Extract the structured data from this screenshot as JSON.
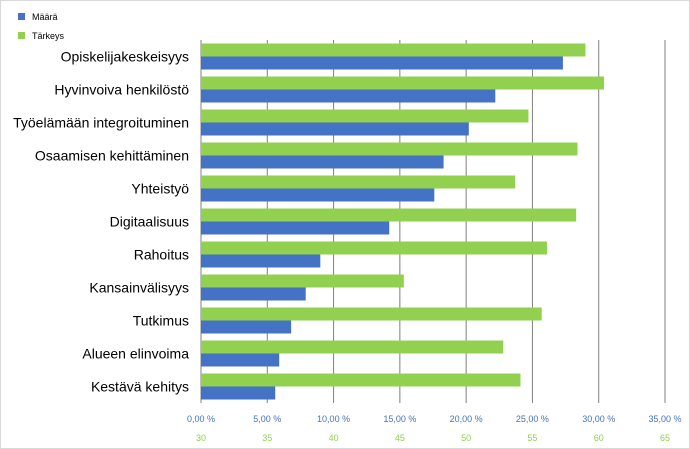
{
  "chart_data": {
    "type": "bar",
    "orientation": "horizontal",
    "categories": [
      "Opiskelijakeskeisyys",
      "Hyvinvoiva henkilöstö",
      "Työelämään integroituminen",
      "Osaamisen kehittäminen",
      "Yhteistyö",
      "Digitaalisuus",
      "Rahoitus",
      "Kansainvälisyys",
      "Tutkimus",
      "Alueen elinvoima",
      "Kestävä kehitys"
    ],
    "series": [
      {
        "name": "Määrä",
        "color": "#4472c4",
        "axis": "primary",
        "values": [
          27.3,
          22.2,
          20.2,
          18.3,
          17.6,
          14.2,
          9.0,
          7.9,
          6.8,
          5.9,
          5.6
        ]
      },
      {
        "name": "Tärkeys",
        "color": "#92d050",
        "axis": "secondary",
        "values": [
          59.0,
          60.4,
          54.7,
          58.4,
          53.7,
          58.3,
          56.1,
          45.3,
          55.7,
          52.8,
          54.1
        ]
      }
    ],
    "x_axis_primary": {
      "min": 0,
      "max": 35,
      "ticks": [
        "0,00 %",
        "5,00 %",
        "10,00 %",
        "15,00 %",
        "20,00 %",
        "25,00 %",
        "30,00 %",
        "35,00 %"
      ]
    },
    "x_axis_secondary": {
      "min": 30,
      "max": 65,
      "ticks": [
        "30",
        "35",
        "40",
        "45",
        "50",
        "55",
        "60",
        "65"
      ]
    },
    "grid": true,
    "legend_position": "top-left"
  }
}
